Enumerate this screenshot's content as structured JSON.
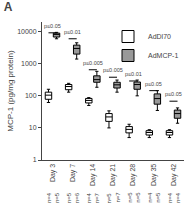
{
  "chart_data": {
    "type": "box",
    "title": "A",
    "ylabel": "MCP-1 (pg/mg protein)",
    "categories": [
      "Day 3",
      "Day 7",
      "Day 14",
      "Day 21",
      "Day 28",
      "Day 35",
      "Day 42"
    ],
    "series": [
      {
        "name": "AdDl70",
        "color": "#ffffff",
        "q1": [
          78,
          155,
          60,
          16,
          7,
          6,
          6
        ],
        "median": [
          105,
          195,
          72,
          22,
          9,
          7.2,
          7.2
        ],
        "q3": [
          130,
          225,
          83,
          28,
          11,
          8.2,
          8.2
        ],
        "whisker_low": [
          62,
          130,
          50,
          10,
          5,
          5,
          5
        ],
        "whisker_high": [
          160,
          245,
          88,
          34,
          13,
          8.8,
          8.8
        ],
        "n_labels": [
          "n=4",
          "n=5",
          "n=4",
          "n=5",
          "n=5",
          "n=4",
          "n=4"
        ]
      },
      {
        "name": "AdMCP-1",
        "color": "#999999",
        "q1": [
          6800,
          2000,
          265,
          175,
          160,
          55,
          20
        ],
        "median": [
          8200,
          3000,
          320,
          220,
          225,
          82,
          28
        ],
        "q3": [
          9000,
          3800,
          420,
          265,
          270,
          115,
          36
        ],
        "whisker_low": [
          6000,
          1400,
          185,
          130,
          100,
          35,
          14
        ],
        "whisker_high": [
          9500,
          4500,
          580,
          310,
          310,
          145,
          42
        ],
        "n_labels": [
          "n=5",
          "n=6",
          "n=7",
          "n=7",
          "n=5",
          "n=5",
          "n=4"
        ]
      }
    ],
    "annotations": [
      {
        "text": "p≤0.05",
        "category": "Day 3",
        "y": 9200
      },
      {
        "text": "p≤0.01",
        "category": "Day 7",
        "y": 6000
      },
      {
        "text": "p≤0.005",
        "category": "Day 14",
        "y": 650
      },
      {
        "text": "p≤0.005",
        "category": "Day 21",
        "y": 380
      },
      {
        "text": "p≤0.01",
        "category": "Day 28",
        "y": 290
      },
      {
        "text": "p≤0.05",
        "category": "Day 35",
        "y": 145
      },
      {
        "text": "p≤0.05",
        "category": "Day 42",
        "y": 68
      }
    ],
    "log": "y",
    "ylim": [
      1,
      20000
    ],
    "yticks": [
      1,
      10,
      100,
      1000,
      10000
    ],
    "grid": false,
    "legend": "upper right"
  }
}
